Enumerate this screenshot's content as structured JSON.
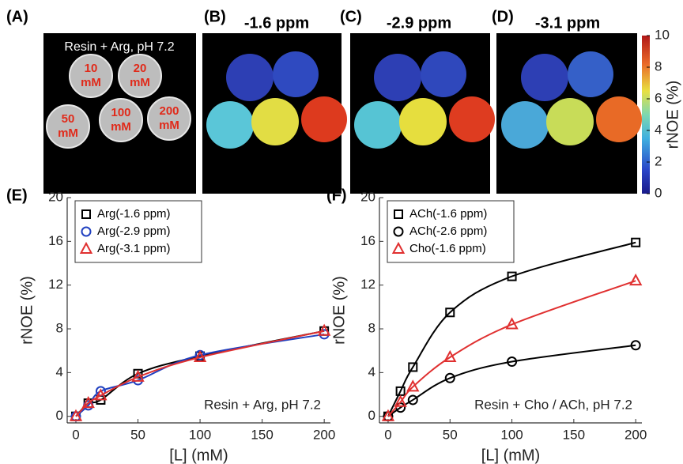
{
  "panels": {
    "A": {
      "label": "(A)",
      "caption": "Resin + Arg, pH 7.2",
      "concentrations": [
        {
          "number": "10",
          "unit": "mM"
        },
        {
          "number": "20",
          "unit": "mM"
        },
        {
          "number": "50",
          "unit": "mM"
        },
        {
          "number": "100",
          "unit": "mM"
        },
        {
          "number": "200",
          "unit": "mM"
        }
      ]
    },
    "B": {
      "label": "(B)",
      "title": "-1.6 ppm"
    },
    "C": {
      "label": "(C)",
      "title": "-2.9 ppm"
    },
    "D": {
      "label": "(D)",
      "title": "-3.1 ppm"
    }
  },
  "colorbar": {
    "label": "rNOE (%)",
    "lim": [
      0,
      10
    ],
    "ticks": [
      0,
      2,
      4,
      6,
      8,
      10
    ]
  },
  "chart_data": [
    {
      "type": "line",
      "panel_label": "(E)",
      "xlabel": "[L] (mM)",
      "ylabel": "rNOE (%)",
      "annotation": "Resin + Arg, pH 7.2",
      "x": [
        0,
        10,
        20,
        50,
        100,
        200
      ],
      "series": [
        {
          "name": "Arg(-1.6 ppm)",
          "color": "#000000",
          "marker": "square",
          "values": [
            0,
            1.2,
            1.5,
            3.9,
            5.5,
            7.8
          ]
        },
        {
          "name": "Arg(-2.9 ppm)",
          "color": "#2040c0",
          "marker": "circle",
          "values": [
            0,
            1.0,
            2.3,
            3.3,
            5.6,
            7.5
          ]
        },
        {
          "name": "Arg(-3.1 ppm)",
          "color": "#e03030",
          "marker": "triangle",
          "values": [
            0,
            1.2,
            1.9,
            3.6,
            5.4,
            7.8
          ]
        }
      ],
      "xlim": [
        -7,
        205
      ],
      "ylim": [
        -0.6,
        20
      ],
      "xticks": [
        0,
        50,
        100,
        150,
        200
      ],
      "yticks": [
        0,
        4,
        8,
        12,
        16,
        20
      ],
      "legend": "upper left"
    },
    {
      "type": "line",
      "panel_label": "(F)",
      "xlabel": "[L] (mM)",
      "ylabel": "rNOE (%)",
      "annotation": "Resin + Cho / ACh, pH 7.2",
      "x": [
        0,
        10,
        20,
        50,
        100,
        200
      ],
      "series": [
        {
          "name": "ACh(-1.6 ppm)",
          "color": "#000000",
          "marker": "square",
          "values": [
            0,
            2.3,
            4.5,
            9.5,
            12.8,
            15.9
          ]
        },
        {
          "name": "ACh(-2.6 ppm)",
          "color": "#000000",
          "marker": "circle",
          "values": [
            0,
            0.8,
            1.5,
            3.5,
            5.0,
            6.5
          ]
        },
        {
          "name": "Cho(-1.6 ppm)",
          "color": "#e03030",
          "marker": "triangle",
          "values": [
            0,
            1.3,
            2.7,
            5.4,
            8.4,
            12.4
          ]
        }
      ],
      "xlim": [
        -7,
        205
      ],
      "ylim": [
        -0.6,
        20
      ],
      "xticks": [
        0,
        50,
        100,
        150,
        200
      ],
      "yticks": [
        0,
        4,
        8,
        12,
        16,
        20
      ],
      "legend": "upper left"
    }
  ]
}
